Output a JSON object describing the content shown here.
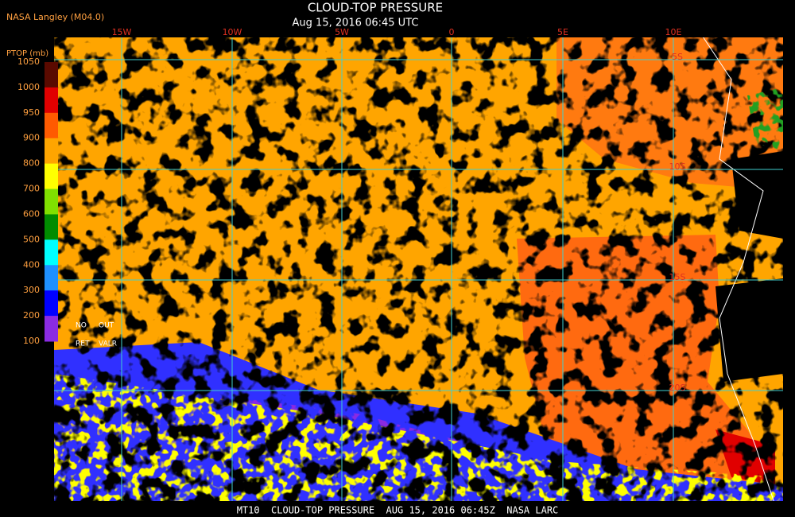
{
  "header": {
    "source": "NASA Langley (M04.0)",
    "title": "CLOUD-TOP PRESSURE",
    "subtitle": "Aug 15, 2016 06:45 UTC"
  },
  "legend": {
    "title": "PTOP (mb)",
    "ticks": [
      1050,
      1000,
      950,
      900,
      800,
      700,
      600,
      500,
      400,
      300,
      200,
      100
    ],
    "colors": [
      "#5a0a00",
      "#e00000",
      "#ff5a00",
      "#ffa500",
      "#ffff00",
      "#80e000",
      "#008c00",
      "#00ffff",
      "#1e90ff",
      "#0000ff",
      "#8a2be2"
    ],
    "no_retrieval": [
      "NO",
      "OUT",
      "RET",
      "VALR"
    ]
  },
  "longitudes": [
    "15W",
    "10W",
    "5W",
    "0",
    "5E",
    "10E"
  ],
  "latitudes": [
    "5S",
    "10S",
    "15S",
    "20S"
  ],
  "footer": "MT10  CLOUD-TOP PRESSURE  AUG 15, 2016 06:45Z  NASA LARC"
}
